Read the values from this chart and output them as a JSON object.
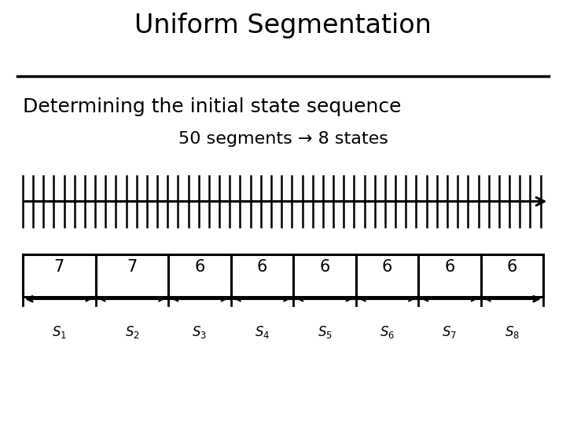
{
  "title": "Uniform Segmentation",
  "subtitle": "Determining the initial state sequence",
  "subtitle2": "50 segments → 8 states",
  "n_segments": 50,
  "n_states": 8,
  "state_counts": [
    7,
    7,
    6,
    6,
    6,
    6,
    6,
    6
  ],
  "state_labels": [
    "S_1",
    "S_2",
    "S_3",
    "S_4",
    "S_5",
    "S_6",
    "S_7",
    "S_8"
  ],
  "bg_color": "#ffffff",
  "fg_color": "#000000",
  "title_fontsize": 24,
  "subtitle_fontsize": 18,
  "subtitle2_fontsize": 16
}
